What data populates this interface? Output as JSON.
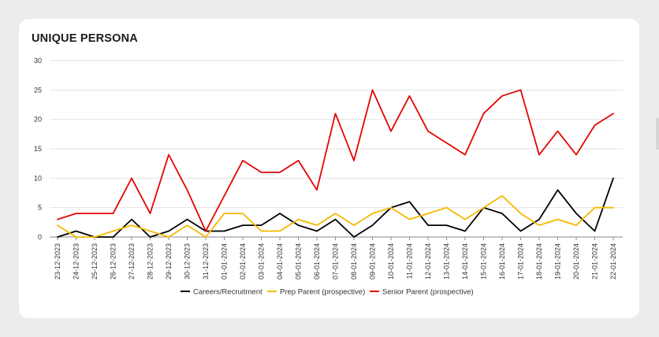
{
  "card": {
    "title": "UNIQUE PERSONA"
  },
  "chart_data": {
    "type": "line",
    "title": "UNIQUE PERSONA",
    "xlabel": "",
    "ylabel": "",
    "ylim": [
      0,
      30
    ],
    "yticks": [
      0,
      5,
      10,
      15,
      20,
      25,
      30
    ],
    "grid": true,
    "legend_position": "bottom-center",
    "categories": [
      "23-12-2023",
      "24-12-2023",
      "25-12-2023",
      "26-12-2023",
      "27-12-2023",
      "28-12-2023",
      "29-12-2023",
      "30-12-2023",
      "31-12-2023",
      "01-01-2024",
      "02-01-2024",
      "03-01-2024",
      "04-01-2024",
      "05-01-2024",
      "06-01-2024",
      "07-01-2024",
      "08-01-2024",
      "09-01-2024",
      "10-01-2024",
      "11-01-2024",
      "12-01-2024",
      "13-01-2024",
      "14-01-2024",
      "15-01-2024",
      "16-01-2024",
      "17-01-2024",
      "18-01-2024",
      "19-01-2024",
      "20-01-2024",
      "21-01-2024",
      "22-01-2024"
    ],
    "series": [
      {
        "name": "Careers/Recruitment",
        "color": "#000000",
        "values": [
          0,
          1,
          0,
          0,
          3,
          0,
          1,
          3,
          1,
          1,
          2,
          2,
          4,
          2,
          1,
          3,
          0,
          2,
          5,
          6,
          2,
          2,
          1,
          5,
          4,
          1,
          3,
          8,
          4,
          1,
          10
        ]
      },
      {
        "name": "Prep Parent (prospective)",
        "color": "#f5b800",
        "values": [
          2,
          0,
          0,
          1,
          2,
          1,
          0,
          2,
          0,
          4,
          4,
          1,
          1,
          3,
          2,
          4,
          2,
          4,
          5,
          3,
          4,
          5,
          3,
          5,
          7,
          4,
          2,
          3,
          2,
          5,
          5
        ]
      },
      {
        "name": "Senior Parent (prospective)",
        "color": "#e10600",
        "values": [
          3,
          4,
          4,
          4,
          10,
          4,
          14,
          8,
          1,
          7,
          13,
          11,
          11,
          13,
          8,
          21,
          13,
          25,
          18,
          24,
          18,
          16,
          14,
          21,
          24,
          25,
          14,
          18,
          14,
          19,
          21
        ]
      }
    ]
  }
}
